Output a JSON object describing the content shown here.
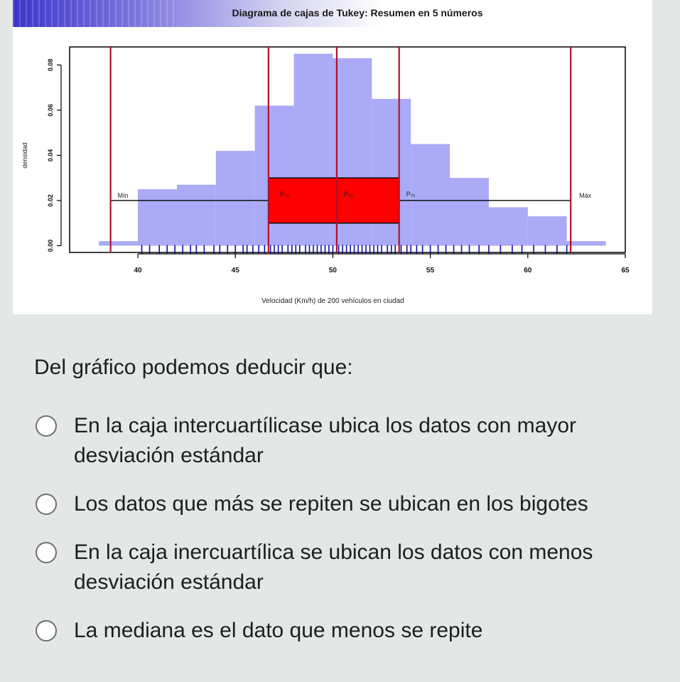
{
  "question": {
    "prompt": "Del gráfico podemos deducir que:",
    "options": [
      {
        "label": "En la caja intercuartílicase ubica los datos con mayor desviación estándar"
      },
      {
        "label": "Los datos que más se repiten se ubican en los bigotes"
      },
      {
        "label": "En la caja inercuartílica se ubican los datos con menos desviación estándar"
      },
      {
        "label": "La mediana es el dato que menos se repite"
      }
    ]
  },
  "chart_data": {
    "type": "histogram+boxplot",
    "title": "Diagrama de cajas de Tukey: Resumen en 5 números",
    "xlabel": "Velocidad (Km/h) de 200 vehículos en ciudad",
    "ylabel": "densidad",
    "xlim": [
      36.5,
      65
    ],
    "ylim": [
      -0.003,
      0.088
    ],
    "x_ticks": [
      40,
      45,
      50,
      55,
      60,
      65
    ],
    "y_ticks": [
      0.0,
      0.02,
      0.04,
      0.06,
      0.08
    ],
    "y_tick_labels": [
      "0.00",
      "0.02",
      "0.04",
      "0.06",
      "0.08"
    ],
    "histogram": {
      "bin_edges": [
        38,
        40,
        42,
        44,
        46,
        48,
        50,
        52,
        54,
        56,
        58,
        60,
        62,
        64
      ],
      "densities": [
        0.002,
        0.025,
        0.027,
        0.042,
        0.062,
        0.085,
        0.083,
        0.065,
        0.045,
        0.03,
        0.017,
        0.013,
        0.002
      ],
      "color": "#aaaaf6"
    },
    "five_number_summary": {
      "min": 38.6,
      "q1": 46.7,
      "median": 50.2,
      "q3": 53.4,
      "max": 62.2
    },
    "box": {
      "y_low": 0.01,
      "y_high": 0.03,
      "whisker_y": 0.02,
      "color": "#ff0000"
    },
    "labels": {
      "min": "Mín",
      "q1": "P₂₅",
      "median": "P₅₀",
      "q3": "P₇₅",
      "max": "Máx"
    },
    "rug": [
      40.2,
      40.6,
      41.1,
      41.5,
      41.9,
      42.3,
      42.7,
      43.0,
      43.4,
      43.9,
      44.2,
      44.6,
      45.0,
      45.4,
      45.6,
      45.9,
      46.2,
      46.5,
      46.8,
      47.0,
      47.2,
      47.4,
      47.7,
      47.9,
      48.1,
      48.3,
      48.6,
      48.8,
      49.0,
      49.2,
      49.4,
      49.6,
      49.8,
      50.0,
      50.3,
      50.5,
      50.7,
      50.9,
      51.1,
      51.3,
      51.5,
      51.7,
      51.9,
      52.1,
      52.3,
      52.5,
      52.8,
      53.0,
      53.2,
      53.5,
      53.8,
      54.0,
      54.3,
      54.6,
      55.0,
      55.4,
      55.8,
      56.2,
      56.6,
      57.0,
      57.5,
      58.0,
      58.6,
      59.2,
      59.7,
      60.3,
      60.9,
      61.5,
      62.0
    ],
    "rug_color": "#1010a0"
  }
}
